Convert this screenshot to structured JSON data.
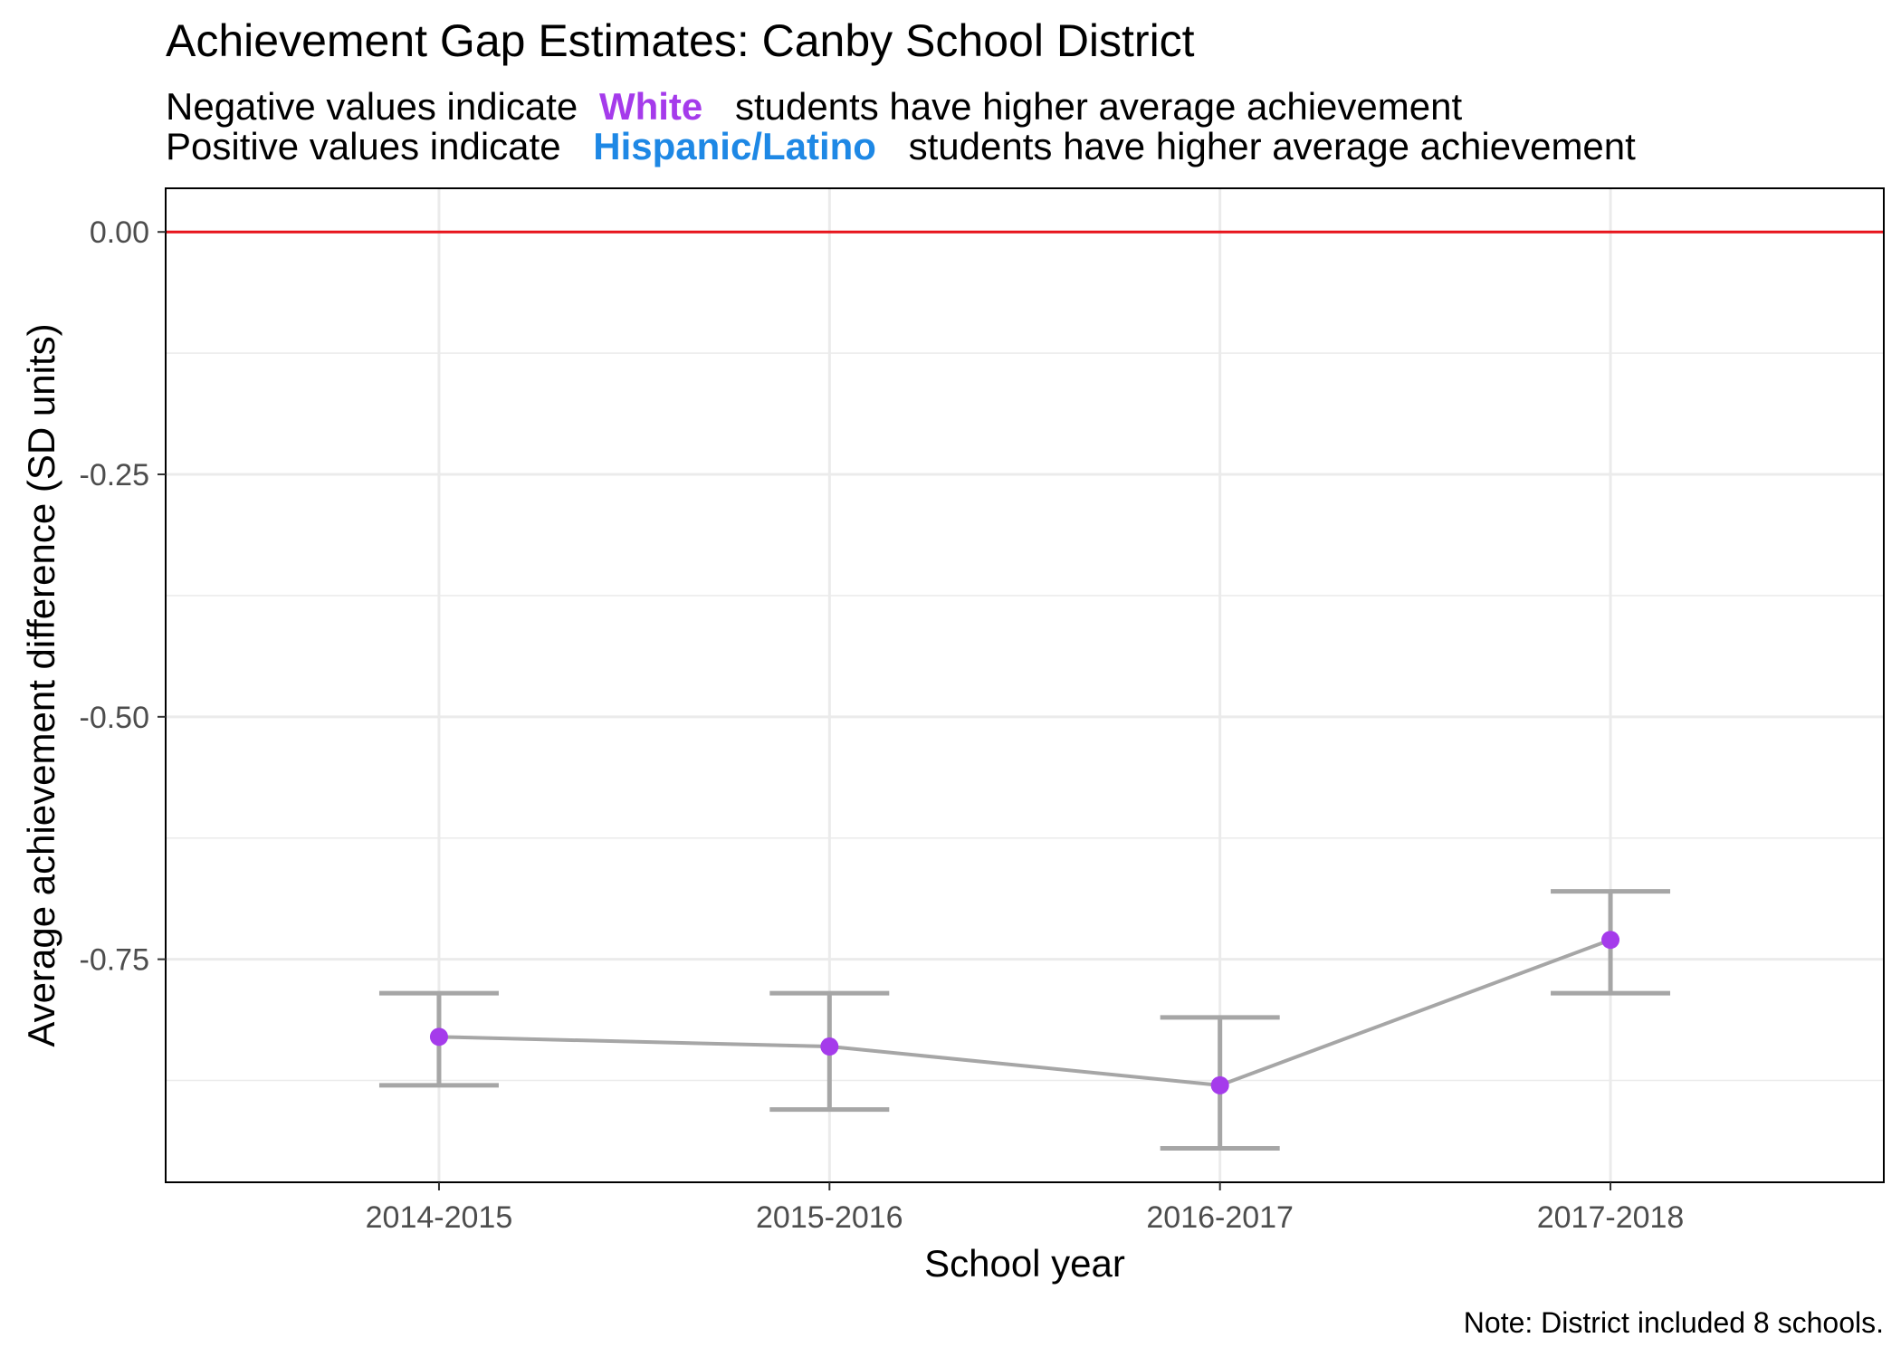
{
  "colors": {
    "white_group": "#A53BEB",
    "hispanic_group": "#1E88E5",
    "reference_line": "#E8141B",
    "errorbar": "#A6A6A6",
    "line": "#A6A6A6",
    "point": "#A53BEB",
    "grid": "#EBEBEB"
  },
  "chart_data": {
    "type": "line",
    "title": "Achievement Gap Estimates: Canby School District",
    "subtitle_line1": {
      "prefix": "Negative values indicate",
      "highlight": "White",
      "suffix": "students have higher average achievement"
    },
    "subtitle_line2": {
      "prefix": "Positive values indicate",
      "highlight": "Hispanic/Latino",
      "suffix": "students have higher average achievement"
    },
    "xlabel": "School year",
    "ylabel": "Average achievement difference (SD units)",
    "caption": "Note: District included 8 schools.",
    "categories": [
      "2014-2015",
      "2015-2016",
      "2016-2017",
      "2017-2018"
    ],
    "values": [
      -0.83,
      -0.84,
      -0.88,
      -0.73
    ],
    "lower": [
      -0.88,
      -0.905,
      -0.945,
      -0.785
    ],
    "upper": [
      -0.785,
      -0.785,
      -0.81,
      -0.68
    ],
    "reference_line": 0,
    "ylim": [
      -0.98,
      0.045
    ],
    "yticks": [
      0,
      -0.25,
      -0.5,
      -0.75
    ],
    "ytick_labels": [
      "0.00",
      "-0.25",
      "-0.50",
      "-0.75"
    ],
    "grid": true
  }
}
